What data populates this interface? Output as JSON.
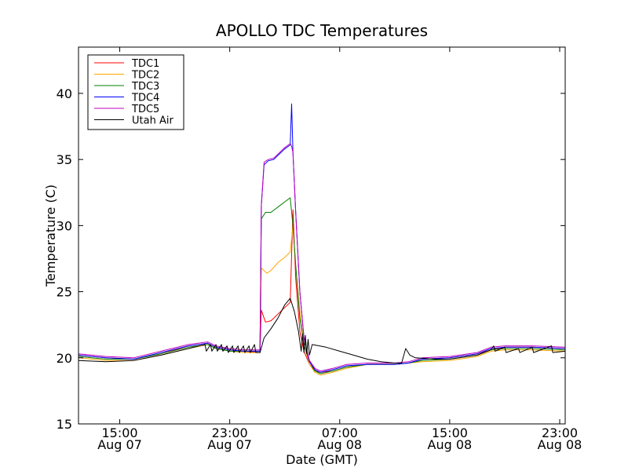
{
  "chart_data": {
    "type": "line",
    "title": "APOLLO TDC Temperatures",
    "xlabel": "Date (GMT)",
    "ylabel": "Temperature (C)",
    "x_unit": "hours since Aug 07 00:00 GMT",
    "xlim": [
      12.0,
      47.4
    ],
    "ylim": [
      15,
      43.5
    ],
    "yticks": [
      15,
      20,
      25,
      30,
      35,
      40
    ],
    "xticks": [
      {
        "value": 15,
        "line1": "15:00",
        "line2": "Aug 07"
      },
      {
        "value": 23,
        "line1": "23:00",
        "line2": "Aug 07"
      },
      {
        "value": 31,
        "line1": "07:00",
        "line2": "Aug 08"
      },
      {
        "value": 39,
        "line1": "15:00",
        "line2": "Aug 08"
      },
      {
        "value": 47,
        "line1": "23:00",
        "line2": "Aug 08"
      }
    ],
    "legend_position": "top-left",
    "series": [
      {
        "name": "TDC1",
        "color": "#ff0000",
        "points": [
          [
            12,
            20.2
          ],
          [
            14,
            20.0
          ],
          [
            16,
            19.9
          ],
          [
            18,
            20.3
          ],
          [
            20,
            20.9
          ],
          [
            21.4,
            21.1
          ],
          [
            22,
            20.8
          ],
          [
            23,
            20.6
          ],
          [
            24,
            20.5
          ],
          [
            25.2,
            20.4
          ],
          [
            25.3,
            23.6
          ],
          [
            25.6,
            22.7
          ],
          [
            26,
            22.8
          ],
          [
            26.5,
            23.3
          ],
          [
            27,
            23.8
          ],
          [
            27.4,
            24.2
          ],
          [
            27.6,
            31.2
          ],
          [
            27.8,
            26
          ],
          [
            28.1,
            22
          ],
          [
            28.4,
            20.5
          ],
          [
            28.8,
            19.5
          ],
          [
            29.2,
            19.0
          ],
          [
            29.6,
            18.9
          ],
          [
            30.5,
            19.0
          ],
          [
            31.5,
            19.3
          ],
          [
            33,
            19.5
          ],
          [
            35,
            19.5
          ],
          [
            36,
            19.6
          ],
          [
            37,
            19.9
          ],
          [
            39,
            20.0
          ],
          [
            41,
            20.3
          ],
          [
            42,
            20.6
          ],
          [
            43,
            20.8
          ],
          [
            45,
            20.8
          ],
          [
            47.4,
            20.7
          ]
        ]
      },
      {
        "name": "TDC2",
        "color": "#ffa500",
        "points": [
          [
            12,
            20.0
          ],
          [
            14,
            19.8
          ],
          [
            16,
            19.8
          ],
          [
            18,
            20.2
          ],
          [
            20,
            20.7
          ],
          [
            21.4,
            21.0
          ],
          [
            22,
            20.7
          ],
          [
            23,
            20.5
          ],
          [
            24,
            20.4
          ],
          [
            25.2,
            20.4
          ],
          [
            25.3,
            26.8
          ],
          [
            25.7,
            26.4
          ],
          [
            26,
            26.6
          ],
          [
            26.5,
            27.2
          ],
          [
            27,
            27.6
          ],
          [
            27.4,
            28.0
          ],
          [
            27.6,
            30.0
          ],
          [
            27.8,
            27
          ],
          [
            28.1,
            23.5
          ],
          [
            28.4,
            21
          ],
          [
            28.8,
            19.5
          ],
          [
            29.2,
            18.9
          ],
          [
            29.6,
            18.7
          ],
          [
            30.5,
            18.9
          ],
          [
            31.5,
            19.2
          ],
          [
            33,
            19.5
          ],
          [
            35,
            19.5
          ],
          [
            36,
            19.6
          ],
          [
            37,
            19.7
          ],
          [
            39,
            19.8
          ],
          [
            41,
            20.1
          ],
          [
            42,
            20.5
          ],
          [
            43,
            20.6
          ],
          [
            45,
            20.6
          ],
          [
            47.4,
            20.5
          ]
        ]
      },
      {
        "name": "TDC3",
        "color": "#008000",
        "points": [
          [
            12,
            20.1
          ],
          [
            14,
            19.9
          ],
          [
            16,
            19.9
          ],
          [
            18,
            20.3
          ],
          [
            20,
            20.8
          ],
          [
            21.4,
            21.0
          ],
          [
            22,
            20.7
          ],
          [
            23,
            20.5
          ],
          [
            24,
            20.5
          ],
          [
            25.2,
            20.5
          ],
          [
            25.3,
            30.5
          ],
          [
            25.6,
            31.0
          ],
          [
            26,
            31.0
          ],
          [
            26.5,
            31.4
          ],
          [
            27,
            31.8
          ],
          [
            27.4,
            32.1
          ],
          [
            27.6,
            30
          ],
          [
            27.8,
            27
          ],
          [
            28.1,
            23
          ],
          [
            28.4,
            21
          ],
          [
            28.8,
            19.7
          ],
          [
            29.2,
            19.0
          ],
          [
            29.6,
            18.8
          ],
          [
            30.5,
            19.0
          ],
          [
            31.5,
            19.3
          ],
          [
            33,
            19.5
          ],
          [
            35,
            19.5
          ],
          [
            36,
            19.6
          ],
          [
            37,
            19.8
          ],
          [
            39,
            19.9
          ],
          [
            41,
            20.2
          ],
          [
            42,
            20.6
          ],
          [
            43,
            20.7
          ],
          [
            45,
            20.7
          ],
          [
            47.4,
            20.6
          ]
        ]
      },
      {
        "name": "TDC4",
        "color": "#0000ff",
        "points": [
          [
            12,
            20.2
          ],
          [
            14,
            20.0
          ],
          [
            16,
            19.9
          ],
          [
            18,
            20.4
          ],
          [
            20,
            20.9
          ],
          [
            21.4,
            21.1
          ],
          [
            22,
            20.8
          ],
          [
            23,
            20.6
          ],
          [
            24,
            20.5
          ],
          [
            25.2,
            20.5
          ],
          [
            25.3,
            31.5
          ],
          [
            25.5,
            34.6
          ],
          [
            25.8,
            34.9
          ],
          [
            26.2,
            35.0
          ],
          [
            26.6,
            35.4
          ],
          [
            27.0,
            35.8
          ],
          [
            27.4,
            36.1
          ],
          [
            27.5,
            39.2
          ],
          [
            27.6,
            35.5
          ],
          [
            27.8,
            31
          ],
          [
            28.1,
            25
          ],
          [
            28.4,
            21.5
          ],
          [
            28.8,
            19.7
          ],
          [
            29.2,
            19.1
          ],
          [
            29.6,
            18.9
          ],
          [
            30.5,
            19.1
          ],
          [
            31.5,
            19.4
          ],
          [
            33,
            19.5
          ],
          [
            35,
            19.5
          ],
          [
            36,
            19.6
          ],
          [
            37,
            19.9
          ],
          [
            39,
            20.0
          ],
          [
            41,
            20.3
          ],
          [
            42,
            20.7
          ],
          [
            43,
            20.8
          ],
          [
            45,
            20.8
          ],
          [
            47.4,
            20.7
          ]
        ]
      },
      {
        "name": "TDC5",
        "color": "#bf00bf",
        "points": [
          [
            12,
            20.3
          ],
          [
            14,
            20.1
          ],
          [
            16,
            20.0
          ],
          [
            18,
            20.5
          ],
          [
            20,
            21.0
          ],
          [
            21.4,
            21.2
          ],
          [
            22,
            20.9
          ],
          [
            23,
            20.7
          ],
          [
            24,
            20.6
          ],
          [
            25.2,
            20.6
          ],
          [
            25.3,
            31.5
          ],
          [
            25.5,
            34.8
          ],
          [
            25.8,
            35.0
          ],
          [
            26.2,
            35.1
          ],
          [
            26.6,
            35.5
          ],
          [
            27.0,
            35.9
          ],
          [
            27.4,
            36.2
          ],
          [
            27.5,
            36.0
          ],
          [
            27.6,
            35.5
          ],
          [
            27.8,
            31
          ],
          [
            28.1,
            25
          ],
          [
            28.4,
            21.5
          ],
          [
            28.8,
            19.8
          ],
          [
            29.2,
            19.2
          ],
          [
            29.6,
            19.0
          ],
          [
            30.5,
            19.2
          ],
          [
            31.5,
            19.5
          ],
          [
            33,
            19.6
          ],
          [
            35,
            19.6
          ],
          [
            36,
            19.7
          ],
          [
            37,
            20.0
          ],
          [
            39,
            20.1
          ],
          [
            41,
            20.4
          ],
          [
            42,
            20.8
          ],
          [
            43,
            20.9
          ],
          [
            45,
            20.9
          ],
          [
            47.4,
            20.8
          ]
        ]
      },
      {
        "name": "Utah Air",
        "color": "#000000",
        "points": [
          [
            12,
            19.8
          ],
          [
            14,
            19.7
          ],
          [
            16,
            19.8
          ],
          [
            18,
            20.2
          ],
          [
            20,
            20.7
          ],
          [
            21.2,
            21.0
          ],
          [
            21.3,
            20.5
          ],
          [
            21.6,
            21.0
          ],
          [
            21.7,
            20.5
          ],
          [
            22.0,
            21.0
          ],
          [
            22.1,
            20.5
          ],
          [
            22.4,
            21.0
          ],
          [
            22.5,
            20.5
          ],
          [
            22.8,
            20.9
          ],
          [
            22.9,
            20.4
          ],
          [
            23.2,
            20.9
          ],
          [
            23.3,
            20.4
          ],
          [
            23.6,
            20.9
          ],
          [
            23.7,
            20.4
          ],
          [
            24.0,
            20.9
          ],
          [
            24.1,
            20.4
          ],
          [
            24.4,
            20.9
          ],
          [
            24.5,
            20.4
          ],
          [
            24.8,
            21.0
          ],
          [
            24.9,
            20.4
          ],
          [
            25.2,
            20.4
          ],
          [
            25.5,
            21.5
          ],
          [
            26.0,
            22.2
          ],
          [
            26.5,
            23.0
          ],
          [
            27.0,
            24.0
          ],
          [
            27.4,
            24.5
          ],
          [
            27.7,
            23.5
          ],
          [
            28.0,
            22.0
          ],
          [
            28.2,
            20.5
          ],
          [
            28.3,
            21.8
          ],
          [
            28.4,
            20.4
          ],
          [
            28.5,
            21.7
          ],
          [
            28.6,
            20.3
          ],
          [
            28.7,
            21.4
          ],
          [
            28.8,
            20.2
          ],
          [
            29.0,
            21.0
          ],
          [
            30,
            20.8
          ],
          [
            31,
            20.5
          ],
          [
            32,
            20.2
          ],
          [
            33,
            19.9
          ],
          [
            34,
            19.7
          ],
          [
            35,
            19.6
          ],
          [
            35.5,
            19.6
          ],
          [
            35.8,
            20.7
          ],
          [
            36.1,
            20.2
          ],
          [
            36.5,
            20.0
          ],
          [
            38,
            19.9
          ],
          [
            39,
            19.9
          ],
          [
            41,
            20.2
          ],
          [
            42,
            20.6
          ],
          [
            42.2,
            20.9
          ],
          [
            42.3,
            20.5
          ],
          [
            43,
            20.8
          ],
          [
            43.1,
            20.4
          ],
          [
            44,
            20.7
          ],
          [
            44.1,
            20.4
          ],
          [
            45,
            20.8
          ],
          [
            45.1,
            20.4
          ],
          [
            46.4,
            20.9
          ],
          [
            46.5,
            20.4
          ],
          [
            47.4,
            20.5
          ]
        ]
      }
    ]
  }
}
